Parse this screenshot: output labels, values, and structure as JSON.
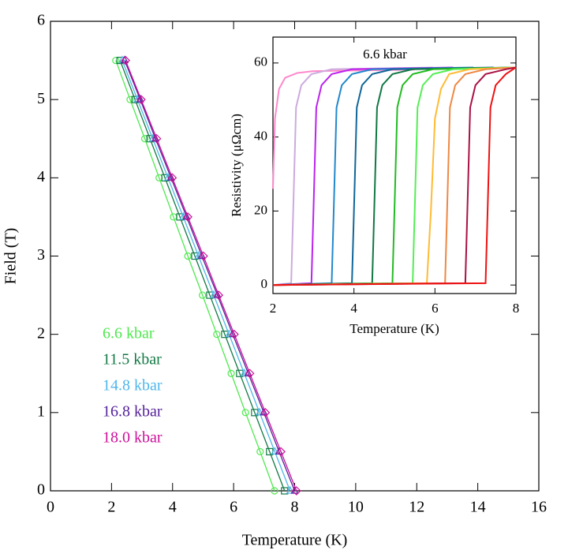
{
  "chart_data": [
    {
      "type": "line",
      "xlabel": "Temperature (K)",
      "ylabel": "Field (T)",
      "xlim": [
        0,
        16
      ],
      "xticks": [
        0,
        2,
        4,
        6,
        8,
        10,
        12,
        14,
        16
      ],
      "ylim": [
        0,
        6
      ],
      "yticks": [
        0,
        1,
        2,
        3,
        4,
        5,
        6
      ],
      "series": [
        {
          "name": "6.6 kbar",
          "color": "#4ee84e",
          "marker": "circle",
          "x": [
            7.34,
            6.87,
            6.39,
            5.92,
            5.45,
            4.98,
            4.5,
            4.03,
            3.56,
            3.09,
            2.61,
            2.14
          ],
          "values": [
            0,
            0.5,
            1,
            1.5,
            2,
            2.5,
            3,
            3.5,
            4,
            4.5,
            5,
            5.5
          ]
        },
        {
          "name": "11.5 kbar",
          "color": "#137a46",
          "marker": "square",
          "x": [
            7.67,
            7.18,
            6.69,
            6.2,
            5.71,
            5.22,
            4.73,
            4.24,
            3.75,
            3.26,
            2.77,
            2.28
          ],
          "values": [
            0,
            0.5,
            1,
            1.5,
            2,
            2.5,
            3,
            3.5,
            4,
            4.5,
            5,
            5.5
          ]
        },
        {
          "name": "14.8 kbar",
          "color": "#4fb6ea",
          "marker": "triangle",
          "x": [
            7.85,
            7.35,
            6.85,
            6.35,
            5.85,
            5.35,
            4.85,
            4.35,
            3.85,
            3.35,
            2.85,
            2.35
          ],
          "values": [
            0,
            0.5,
            1,
            1.5,
            2,
            2.5,
            3,
            3.5,
            4,
            4.5,
            5,
            5.5
          ]
        },
        {
          "name": "16.8 kbar",
          "color": "#55229a",
          "marker": "triangle",
          "x": [
            8.0,
            7.49,
            6.99,
            6.48,
            5.97,
            5.47,
            4.96,
            4.46,
            3.95,
            3.44,
            2.94,
            2.43
          ],
          "values": [
            0,
            0.5,
            1,
            1.5,
            2,
            2.5,
            3,
            3.5,
            4,
            4.5,
            5,
            5.5
          ]
        },
        {
          "name": "18.0 kbar",
          "color": "#cc1199",
          "marker": "diamond",
          "x": [
            8.06,
            7.55,
            7.04,
            6.53,
            6.02,
            5.51,
            5.01,
            4.5,
            3.99,
            3.48,
            2.97,
            2.46
          ],
          "values": [
            0,
            0.5,
            1,
            1.5,
            2,
            2.5,
            3,
            3.5,
            4,
            4.5,
            5,
            5.5
          ]
        }
      ]
    },
    {
      "type": "line",
      "title": "6.6 kbar",
      "xlabel": "Temperature (K)",
      "ylabel": "Resistivity (μΩcm)",
      "xlim": [
        2,
        8
      ],
      "xticks": [
        2,
        4,
        6,
        8
      ],
      "ylim": [
        -2.3,
        67
      ],
      "yticks": [
        0,
        20,
        40,
        60
      ],
      "series": [
        {
          "color": "#ff88cc",
          "x": [
            2,
            2.05,
            2.15,
            2.3,
            2.6,
            3,
            5.5
          ],
          "values": [
            26,
            45,
            53,
            56,
            57.3,
            57.8,
            58.2
          ]
        },
        {
          "color": "#ccaadd",
          "x": [
            2,
            2.45,
            2.5,
            2.57,
            2.7,
            2.95,
            3.45,
            5.95
          ],
          "values": [
            0,
            0.5,
            20,
            48,
            54,
            57,
            58.3,
            58.8
          ]
        },
        {
          "color": "#bb22ee",
          "x": [
            2,
            2.95,
            3.0,
            3.07,
            3.2,
            3.45,
            3.95,
            6.45
          ],
          "values": [
            0,
            0.5,
            20,
            48,
            54,
            57,
            58.3,
            58.8
          ]
        },
        {
          "color": "#2288cc",
          "x": [
            2,
            3.45,
            3.5,
            3.57,
            3.7,
            3.95,
            4.45,
            6.95
          ],
          "values": [
            0,
            0.5,
            20,
            48,
            54,
            57,
            58.3,
            58.8
          ]
        },
        {
          "color": "#116699",
          "x": [
            2,
            3.95,
            4.0,
            4.07,
            4.2,
            4.45,
            4.95,
            7.45
          ],
          "values": [
            0,
            0.5,
            20,
            48,
            54,
            57,
            58.3,
            58.8
          ]
        },
        {
          "color": "#117744",
          "x": [
            2,
            4.45,
            4.5,
            4.57,
            4.7,
            4.95,
            5.45,
            8
          ],
          "values": [
            0,
            0.5,
            20,
            48,
            54,
            57,
            58.3,
            58.8
          ]
        },
        {
          "color": "#22bb22",
          "x": [
            2,
            4.95,
            5.0,
            5.07,
            5.2,
            5.45,
            5.95,
            8
          ],
          "values": [
            0,
            0.5,
            20,
            48,
            54,
            57,
            58.3,
            58.8
          ]
        },
        {
          "color": "#55ee55",
          "x": [
            2,
            5.45,
            5.5,
            5.57,
            5.7,
            5.95,
            6.45,
            8
          ],
          "values": [
            0,
            0.5,
            20,
            48,
            54,
            57,
            58.3,
            58.8
          ]
        },
        {
          "color": "#ffbb33",
          "x": [
            2,
            5.8,
            5.9,
            6.0,
            6.15,
            6.35,
            6.85,
            8
          ],
          "values": [
            0,
            0.5,
            20,
            45,
            53,
            57,
            58.3,
            58.8
          ]
        },
        {
          "color": "#ee8844",
          "x": [
            2,
            6.25,
            6.3,
            6.37,
            6.5,
            6.75,
            7.25,
            8
          ],
          "values": [
            0,
            0.5,
            20,
            48,
            54,
            57,
            58.3,
            58.8
          ]
        },
        {
          "color": "#aa1144",
          "x": [
            2,
            6.75,
            6.8,
            6.87,
            7.0,
            7.25,
            7.75,
            8
          ],
          "values": [
            0,
            0.5,
            20,
            48,
            54,
            57,
            58.3,
            58.8
          ]
        },
        {
          "color": "#ee1111",
          "x": [
            2,
            7.25,
            7.3,
            7.37,
            7.5,
            7.75,
            8
          ],
          "values": [
            0,
            0.5,
            20,
            48,
            54,
            57,
            58.8
          ]
        }
      ]
    }
  ]
}
